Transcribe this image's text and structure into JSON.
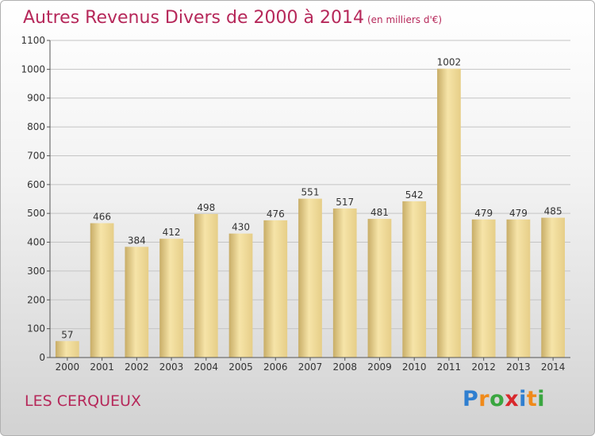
{
  "chart_data": {
    "type": "bar",
    "title": "Autres Revenus Divers de 2000 à 2014",
    "subtitle": "(en milliers d'€)",
    "categories": [
      "2000",
      "2001",
      "2002",
      "2003",
      "2004",
      "2005",
      "2006",
      "2007",
      "2008",
      "2009",
      "2010",
      "2011",
      "2012",
      "2013",
      "2014"
    ],
    "values": [
      57,
      466,
      384,
      412,
      498,
      430,
      476,
      551,
      517,
      481,
      542,
      1002,
      479,
      479,
      485
    ],
    "ylim": [
      0,
      1100
    ],
    "yticks": [
      0,
      100,
      200,
      300,
      400,
      500,
      600,
      700,
      800,
      900,
      1000,
      1100
    ],
    "grid": true,
    "xlabel": "",
    "ylabel": "",
    "colors": {
      "bar": "#e6ce88",
      "bar_highlight": "#f6e4a8",
      "bar_shadow": "#c8ad67",
      "grid": "#c4c4c4"
    }
  },
  "footer": {
    "place": "LES CERQUEUX",
    "logo_letters": [
      {
        "ch": "P",
        "color": "#2f7fd0"
      },
      {
        "ch": "r",
        "color": "#f08a1a"
      },
      {
        "ch": "o",
        "color": "#3aa640"
      },
      {
        "ch": "x",
        "color": "#d8282c"
      },
      {
        "ch": "i",
        "color": "#2f7fd0"
      },
      {
        "ch": "t",
        "color": "#f08a1a"
      },
      {
        "ch": "i",
        "color": "#3aa640"
      }
    ]
  }
}
